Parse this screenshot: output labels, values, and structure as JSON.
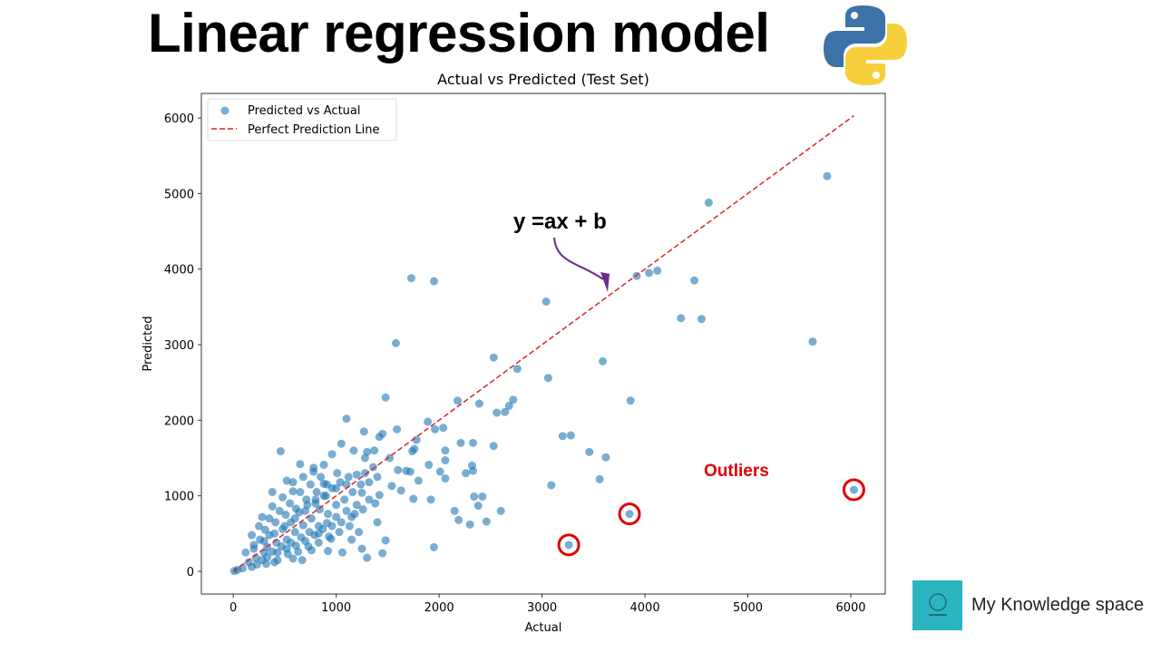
{
  "headline": "Linear regression model",
  "brand": {
    "name": "My Knowledge space",
    "logo_color": "#2bb5c0"
  },
  "chart_data": {
    "type": "scatter",
    "title": "Actual vs Predicted (Test Set)",
    "xlabel": "Actual",
    "ylabel": "Predicted",
    "xlim": [
      -310,
      6335
    ],
    "ylim": [
      -300,
      6325
    ],
    "xticks": [
      0,
      1000,
      2000,
      3000,
      4000,
      5000,
      6000
    ],
    "yticks": [
      0,
      1000,
      2000,
      3000,
      4000,
      5000,
      6000
    ],
    "grid": false,
    "legend_placement": "top-left",
    "legend": [
      "Predicted vs Actual",
      "Perfect Prediction Line"
    ],
    "colors": {
      "points": "#1f77b4",
      "line": "#d62728",
      "annotation_arrow": "#6a2c91",
      "outliers": "#e00000"
    },
    "perfect_line": [
      [
        0,
        0
      ],
      [
        6030,
        6030
      ]
    ],
    "annotations": {
      "equation": "y =ax + b",
      "outliers_label": "Outliers"
    },
    "outliers": [
      [
        3260,
        350
      ],
      [
        3850,
        760
      ],
      [
        6030,
        1080
      ]
    ],
    "points": [
      [
        5770,
        5230
      ],
      [
        4620,
        4880
      ],
      [
        1730,
        3880
      ],
      [
        1950,
        3840
      ],
      [
        3040,
        3570
      ],
      [
        3920,
        3910
      ],
      [
        4040,
        3950
      ],
      [
        4120,
        3980
      ],
      [
        4480,
        3850
      ],
      [
        4350,
        3350
      ],
      [
        4550,
        3340
      ],
      [
        5630,
        3040
      ],
      [
        1580,
        3020
      ],
      [
        2530,
        2830
      ],
      [
        2760,
        2680
      ],
      [
        3060,
        2560
      ],
      [
        3590,
        2780
      ],
      [
        3860,
        2260
      ],
      [
        1480,
        2300
      ],
      [
        2180,
        2260
      ],
      [
        2390,
        2220
      ],
      [
        2560,
        2100
      ],
      [
        2720,
        2270
      ],
      [
        2680,
        2190
      ],
      [
        2640,
        2110
      ],
      [
        1100,
        2020
      ],
      [
        1890,
        1980
      ],
      [
        1590,
        1880
      ],
      [
        3200,
        1790
      ],
      [
        3280,
        1800
      ],
      [
        3460,
        1580
      ],
      [
        3620,
        1510
      ],
      [
        3560,
        1220
      ],
      [
        3090,
        1140
      ],
      [
        2530,
        1660
      ],
      [
        2330,
        1700
      ],
      [
        2210,
        1700
      ],
      [
        2040,
        1900
      ],
      [
        1960,
        1880
      ],
      [
        2300,
        620
      ],
      [
        2460,
        660
      ],
      [
        2600,
        800
      ],
      [
        2190,
        680
      ],
      [
        2150,
        800
      ],
      [
        1950,
        320
      ],
      [
        2340,
        990
      ],
      [
        2420,
        990
      ],
      [
        2380,
        870
      ],
      [
        2330,
        1330
      ],
      [
        2260,
        1300
      ],
      [
        2320,
        1400
      ],
      [
        2060,
        1600
      ],
      [
        1740,
        1590
      ],
      [
        1780,
        1740
      ],
      [
        1760,
        1620
      ],
      [
        1520,
        1500
      ],
      [
        1900,
        1410
      ],
      [
        2060,
        1470
      ],
      [
        1680,
        1330
      ],
      [
        1720,
        1320
      ],
      [
        1800,
        1200
      ],
      [
        2060,
        1230
      ],
      [
        2010,
        1320
      ],
      [
        1420,
        1010
      ],
      [
        1540,
        1130
      ],
      [
        1630,
        1070
      ],
      [
        1750,
        960
      ],
      [
        1920,
        950
      ],
      [
        1600,
        1340
      ],
      [
        1420,
        1780
      ],
      [
        1450,
        1820
      ],
      [
        1270,
        1850
      ],
      [
        1370,
        1600
      ],
      [
        1300,
        1580
      ],
      [
        1050,
        1690
      ],
      [
        960,
        1550
      ],
      [
        1170,
        1600
      ],
      [
        880,
        1410
      ],
      [
        650,
        1420
      ],
      [
        460,
        1590
      ],
      [
        580,
        1060
      ],
      [
        780,
        1320
      ],
      [
        880,
        1160
      ],
      [
        1250,
        1040
      ],
      [
        1180,
        760
      ],
      [
        1400,
        650
      ],
      [
        1220,
        520
      ],
      [
        1480,
        410
      ],
      [
        1450,
        240
      ],
      [
        1300,
        180
      ],
      [
        1150,
        420
      ],
      [
        1250,
        300
      ],
      [
        1060,
        250
      ],
      [
        920,
        270
      ],
      [
        950,
        430
      ],
      [
        830,
        500
      ],
      [
        760,
        280
      ],
      [
        670,
        150
      ],
      [
        580,
        170
      ],
      [
        400,
        120
      ],
      [
        320,
        100
      ],
      [
        180,
        60
      ],
      [
        90,
        40
      ],
      [
        40,
        20
      ],
      [
        10,
        5
      ],
      [
        120,
        250
      ],
      [
        200,
        350
      ],
      [
        260,
        420
      ],
      [
        300,
        250
      ],
      [
        350,
        480
      ],
      [
        420,
        380
      ],
      [
        480,
        560
      ],
      [
        520,
        420
      ],
      [
        560,
        650
      ],
      [
        600,
        520
      ],
      [
        640,
        780
      ],
      [
        680,
        610
      ],
      [
        720,
        880
      ],
      [
        760,
        700
      ],
      [
        800,
        950
      ],
      [
        840,
        820
      ],
      [
        880,
        1000
      ],
      [
        920,
        760
      ],
      [
        960,
        1100
      ],
      [
        1000,
        880
      ],
      [
        1040,
        1180
      ],
      [
        1080,
        950
      ],
      [
        1120,
        1250
      ],
      [
        1160,
        1050
      ],
      [
        1200,
        1280
      ],
      [
        1240,
        1150
      ],
      [
        1280,
        1300
      ],
      [
        1320,
        1180
      ],
      [
        1360,
        1380
      ],
      [
        1400,
        1250
      ],
      [
        150,
        120
      ],
      [
        220,
        180
      ],
      [
        280,
        150
      ],
      [
        330,
        320
      ],
      [
        380,
        260
      ],
      [
        430,
        250
      ],
      [
        470,
        330
      ],
      [
        520,
        300
      ],
      [
        560,
        380
      ],
      [
        610,
        340
      ],
      [
        660,
        450
      ],
      [
        700,
        400
      ],
      [
        740,
        520
      ],
      [
        790,
        480
      ],
      [
        830,
        600
      ],
      [
        870,
        560
      ],
      [
        910,
        640
      ],
      [
        960,
        600
      ],
      [
        1000,
        720
      ],
      [
        1050,
        650
      ],
      [
        1100,
        800
      ],
      [
        1150,
        720
      ],
      [
        1200,
        880
      ],
      [
        1260,
        820
      ],
      [
        1320,
        950
      ],
      [
        1380,
        900
      ],
      [
        250,
        600
      ],
      [
        350,
        700
      ],
      [
        450,
        800
      ],
      [
        550,
        900
      ],
      [
        650,
        1050
      ],
      [
        750,
        1150
      ],
      [
        850,
        1250
      ],
      [
        310,
        550
      ],
      [
        410,
        650
      ],
      [
        510,
        750
      ],
      [
        610,
        830
      ],
      [
        710,
        950
      ],
      [
        810,
        1050
      ],
      [
        910,
        1150
      ],
      [
        1010,
        1300
      ],
      [
        200,
        300
      ],
      [
        300,
        400
      ],
      [
        400,
        500
      ],
      [
        500,
        600
      ],
      [
        600,
        700
      ],
      [
        700,
        800
      ],
      [
        800,
        900
      ],
      [
        900,
        1000
      ],
      [
        1000,
        1100
      ],
      [
        1100,
        1150
      ],
      [
        230,
        90
      ],
      [
        330,
        190
      ],
      [
        430,
        150
      ],
      [
        530,
        230
      ],
      [
        630,
        260
      ],
      [
        730,
        330
      ],
      [
        830,
        380
      ],
      [
        930,
        460
      ],
      [
        1030,
        520
      ],
      [
        1130,
        600
      ],
      [
        180,
        480
      ],
      [
        280,
        720
      ],
      [
        380,
        860
      ],
      [
        480,
        980
      ],
      [
        580,
        1180
      ],
      [
        680,
        1250
      ],
      [
        780,
        1370
      ],
      [
        380,
        1050
      ],
      [
        520,
        1200
      ],
      [
        1280,
        1500
      ]
    ]
  }
}
